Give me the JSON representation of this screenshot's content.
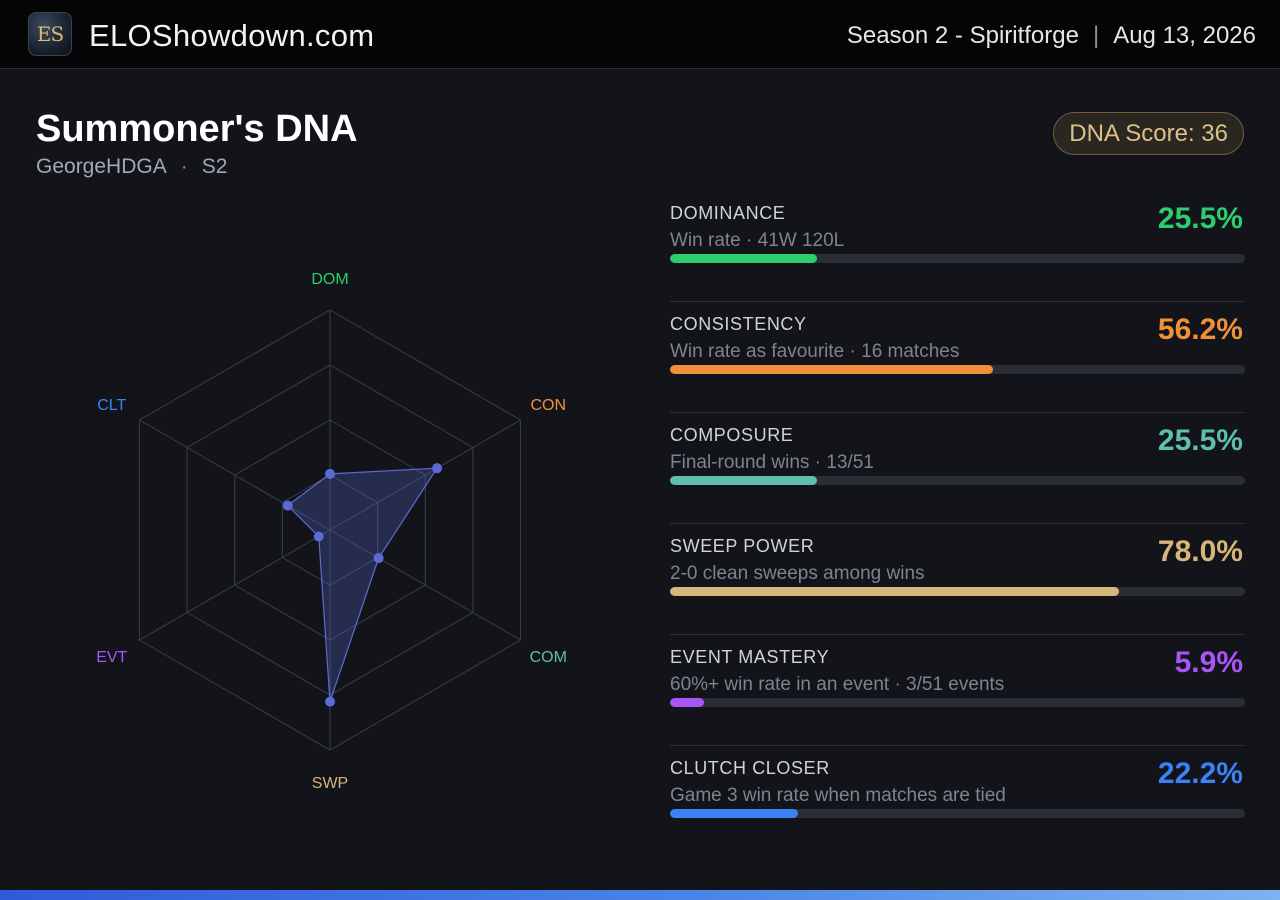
{
  "header": {
    "logo_text": "ES",
    "site_name": "ELOShowdown.com",
    "season": "Season 2 - Spiritforge",
    "separator": "|",
    "date": "Aug 13, 2026"
  },
  "profile": {
    "title": "Summoner's DNA",
    "player": "GeorgeHDGA",
    "dot": "·",
    "season_tag": "S2",
    "dna_score": "DNA Score: 36"
  },
  "radar": {
    "axes": [
      {
        "label": "DOM",
        "color": "#2ecc71",
        "value": 0.255
      },
      {
        "label": "CON",
        "color": "#f0913a",
        "value": 0.562
      },
      {
        "label": "COM",
        "color": "#5fbfad",
        "value": 0.255
      },
      {
        "label": "SWP",
        "color": "#d7b57a",
        "value": 0.78
      },
      {
        "label": "EVT",
        "color": "#a855f7",
        "value": 0.059
      },
      {
        "label": "CLT",
        "color": "#3b82f6",
        "value": 0.222
      }
    ],
    "polygon_color": "#5b6bd6"
  },
  "metrics": [
    {
      "name": "DOMINANCE",
      "desc": "Win rate · 41W 120L",
      "pct": "25.5%",
      "fill": 0.255,
      "color": "#2ecc71"
    },
    {
      "name": "CONSISTENCY",
      "desc": "Win rate as favourite · 16 matches",
      "pct": "56.2%",
      "fill": 0.562,
      "color": "#f0913a"
    },
    {
      "name": "COMPOSURE",
      "desc": "Final-round wins · 13/51",
      "pct": "25.5%",
      "fill": 0.255,
      "color": "#5fbfad"
    },
    {
      "name": "SWEEP POWER",
      "desc": "2-0 clean sweeps among wins",
      "pct": "78.0%",
      "fill": 0.78,
      "color": "#d7b57a"
    },
    {
      "name": "EVENT MASTERY",
      "desc": "60%+ win rate in an event · 3/51 events",
      "pct": "5.9%",
      "fill": 0.059,
      "color": "#a855f7"
    },
    {
      "name": "CLUTCH CLOSER",
      "desc": "Game 3 win rate when matches are tied",
      "pct": "22.2%",
      "fill": 0.222,
      "color": "#3b82f6"
    }
  ]
}
